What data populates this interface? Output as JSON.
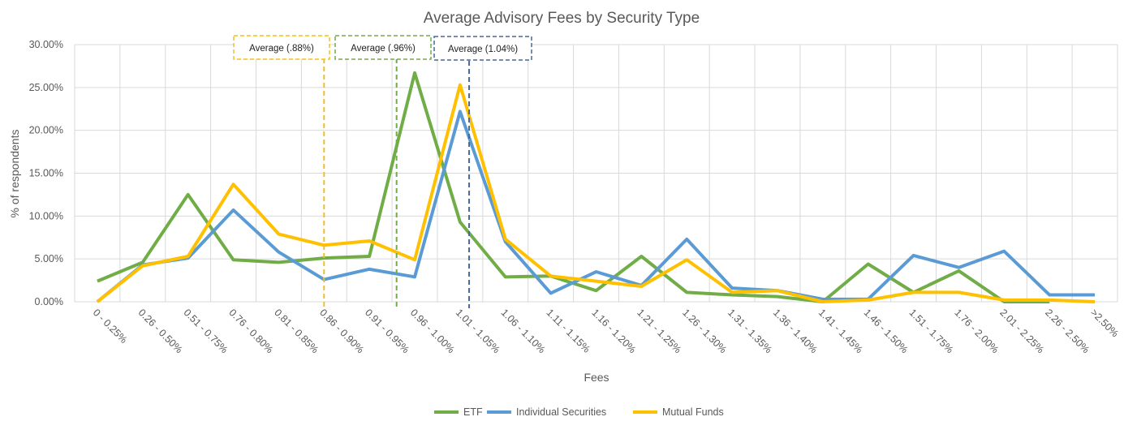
{
  "chart_data": {
    "type": "line",
    "title": "Average Advisory Fees by Security Type",
    "xlabel": "Fees",
    "ylabel": "% of respondents",
    "ylim": [
      0,
      30
    ],
    "yticks": [
      "0.00%",
      "5.00%",
      "10.00%",
      "15.00%",
      "20.00%",
      "25.00%",
      "30.00%"
    ],
    "grid": true,
    "legend": "bottom",
    "categories": [
      "0 - 0.25%",
      "0.26 - 0.50%",
      "0.51 - 0.75%",
      "0.76 - 0.80%",
      "0.81 - 0.85%",
      "0.86 - 0.90%",
      "0.91 - 0.95%",
      "0.96 - 1.00%",
      "1.01 - 1.05%",
      "1.06 - 1.10%",
      "1.11 - 1.15%",
      "1.16 - 1.20%",
      "1.21 - 1.25%",
      "1.26 - 1.30%",
      "1.31 - 1.35%",
      "1.36 - 1.40%",
      "1.41 - 1.45%",
      "1.46 - 1.50%",
      "1.51 - 1.75%",
      "1.76 - 2.00%",
      "2.01 - 2.25%",
      "2.26 - 2.50%",
      ">2.50%"
    ],
    "series": [
      {
        "name": "ETF",
        "color": "#70AD47",
        "values": [
          2.4,
          4.6,
          12.5,
          4.9,
          4.6,
          5.1,
          5.3,
          26.7,
          9.3,
          2.9,
          3.0,
          1.3,
          5.3,
          1.1,
          0.8,
          0.6,
          0.0,
          4.4,
          1.1,
          3.6,
          0.0,
          0.0,
          null
        ]
      },
      {
        "name": "Individual Securities",
        "color": "#5B9BD5",
        "values": [
          0.0,
          4.3,
          5.1,
          10.7,
          5.8,
          2.6,
          3.8,
          2.9,
          22.2,
          7.0,
          1.0,
          3.5,
          1.9,
          7.3,
          1.6,
          1.3,
          0.3,
          0.3,
          5.4,
          4.0,
          5.9,
          0.8,
          0.8
        ]
      },
      {
        "name": "Mutual Funds",
        "color": "#FFC000",
        "values": [
          0.0,
          4.2,
          5.3,
          13.7,
          7.9,
          6.6,
          7.1,
          4.9,
          25.3,
          7.3,
          3.0,
          2.4,
          1.8,
          4.9,
          1.1,
          1.3,
          0.0,
          0.2,
          1.1,
          1.1,
          0.2,
          0.2,
          0.0
        ]
      }
    ],
    "annotations": [
      {
        "label": "Average (.88%)",
        "value": 0.88,
        "color": "#F0BE2A"
      },
      {
        "label": "Average (.96%)",
        "value": 0.96,
        "color": "#70AD47"
      },
      {
        "label": "Average (1.04%)",
        "value": 1.04,
        "color": "#44699B"
      }
    ]
  }
}
